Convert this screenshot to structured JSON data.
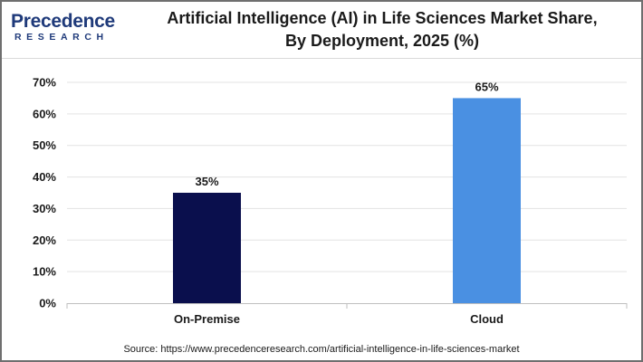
{
  "brand": {
    "logo_main": "Precedence",
    "logo_sub": "RESEARCH",
    "primary_color": "#1f3a7a",
    "accent_color": "#2b66c7"
  },
  "title": {
    "line1": "Artificial Intelligence (AI) in Life Sciences Market Share,",
    "line2": "By Deployment, 2025 (%)"
  },
  "source": "Source: https://www.precedenceresearch.com/artificial-intelligence-in-life-sciences-market",
  "chart_data": {
    "type": "bar",
    "categories": [
      "On-Premise",
      "Cloud"
    ],
    "values": [
      35,
      65
    ],
    "data_labels": [
      "35%",
      "65%"
    ],
    "colors": [
      "#0a0f4d",
      "#4a90e2"
    ],
    "ylim": [
      0,
      70
    ],
    "yticks": [
      0,
      10,
      20,
      30,
      40,
      50,
      60,
      70
    ],
    "ytick_labels": [
      "0%",
      "10%",
      "20%",
      "30%",
      "40%",
      "50%",
      "60%",
      "70%"
    ],
    "grid": true,
    "legend": "none"
  }
}
